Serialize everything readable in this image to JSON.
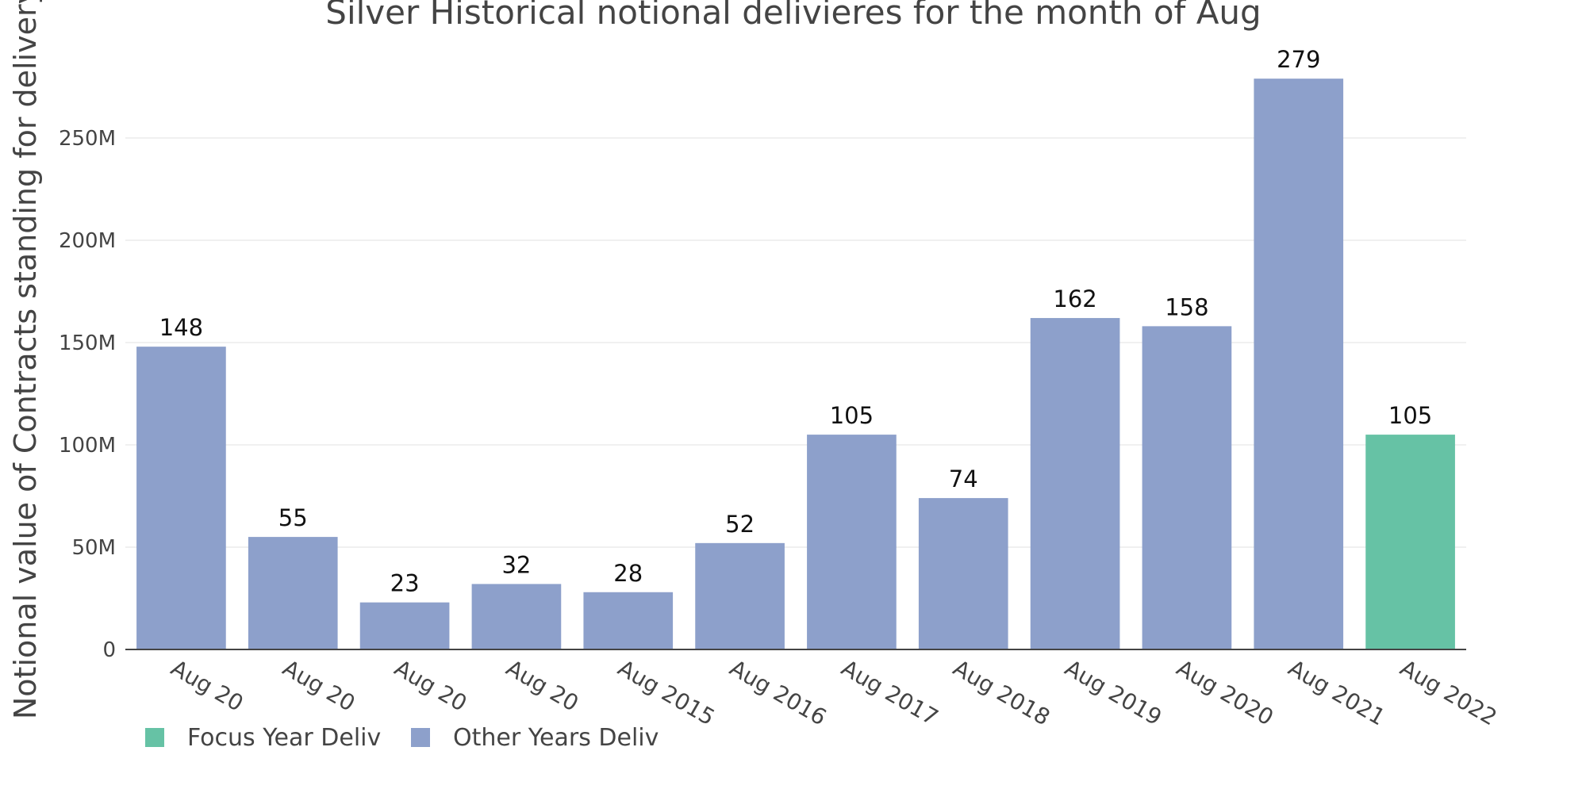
{
  "chart_data": {
    "type": "bar",
    "title": "Silver Historical notional delivieres for the month of Aug",
    "ylabel": "Notional value of Contracts standing for delivery",
    "xlabel": "",
    "ylim": [
      0,
      280
    ],
    "ytick_values": [
      0,
      50,
      100,
      150,
      200,
      250
    ],
    "ytick_labels": [
      "0",
      "50M",
      "100M",
      "150M",
      "200M",
      "250M"
    ],
    "categories": [
      "Aug 20",
      "Aug 20",
      "Aug 20",
      "Aug 20",
      "Aug 2015",
      "Aug 2016",
      "Aug 2017",
      "Aug 2018",
      "Aug 2019",
      "Aug 2020",
      "Aug 2021",
      "Aug 2022"
    ],
    "values": [
      148,
      55,
      23,
      32,
      28,
      52,
      105,
      74,
      162,
      158,
      279,
      105
    ],
    "data_labels": [
      "148",
      "55",
      "23",
      "32",
      "28",
      "52",
      "105",
      "74",
      "162",
      "158",
      "279",
      "105"
    ],
    "series_index": [
      1,
      1,
      1,
      1,
      1,
      1,
      1,
      1,
      1,
      1,
      1,
      0
    ],
    "series": [
      {
        "name": "Focus Year Deliv",
        "color": "#66c2a5"
      },
      {
        "name": "Other Years Deliv",
        "color": "#8da0cb"
      }
    ],
    "legend_placement": "bottom-left",
    "grid": true
  }
}
